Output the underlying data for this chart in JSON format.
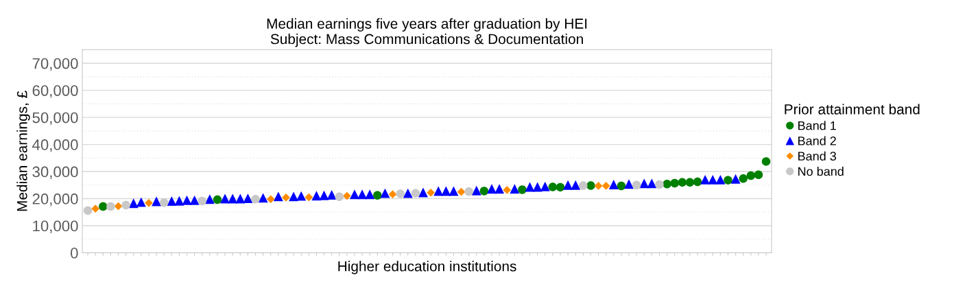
{
  "chart_data": {
    "type": "scatter",
    "title": "Median earnings five years after graduation by HEI\nSubject: Mass Communications & Documentation",
    "xlabel": "Higher education institutions",
    "ylabel": "Median earnings, £",
    "legend_title": "Prior attainment band",
    "legend": "right",
    "grid": "y",
    "categories": [
      null,
      null,
      null,
      null,
      null,
      null,
      null,
      null,
      null,
      null,
      null,
      null,
      null,
      null,
      null,
      null,
      null,
      null,
      null,
      null,
      null,
      null,
      null,
      null,
      null,
      null,
      null,
      null,
      null,
      null,
      null,
      null,
      null,
      null,
      null,
      null,
      null,
      null,
      null,
      null,
      null,
      null,
      null,
      null,
      null,
      null,
      null,
      null,
      null,
      null,
      null,
      null,
      null,
      null,
      null,
      null,
      null,
      null,
      null,
      null,
      null,
      null,
      null,
      null,
      null,
      null,
      null,
      null,
      null,
      null,
      null,
      null,
      null,
      null,
      null,
      null,
      null,
      null,
      null,
      null,
      null,
      null,
      null,
      null,
      null,
      null,
      null,
      null,
      null,
      null
    ],
    "ylim": [
      0,
      75000
    ],
    "yticks": [
      {
        "value": 0,
        "label": "0"
      },
      {
        "value": 5000,
        "label": null
      },
      {
        "value": 10000,
        "label": "10,000"
      },
      {
        "value": 15000,
        "label": null
      },
      {
        "value": 20000,
        "label": "20,000"
      },
      {
        "value": 25000,
        "label": null
      },
      {
        "value": 30000,
        "label": "30,000"
      },
      {
        "value": 35000,
        "label": null
      },
      {
        "value": 40000,
        "label": "40,000"
      },
      {
        "value": 45000,
        "label": null
      },
      {
        "value": 50000,
        "label": "50,000"
      },
      {
        "value": 55000,
        "label": null
      },
      {
        "value": 60000,
        "label": "60,000"
      },
      {
        "value": 65000,
        "label": null
      },
      {
        "value": 70000,
        "label": "70,000"
      }
    ],
    "series": [
      {
        "name": "Band 1",
        "color": "#008000",
        "marker": "circle",
        "values": [
          null,
          null,
          17100,
          null,
          null,
          null,
          null,
          null,
          null,
          null,
          null,
          null,
          null,
          null,
          null,
          null,
          null,
          19600,
          null,
          null,
          null,
          null,
          null,
          null,
          null,
          null,
          null,
          null,
          null,
          null,
          null,
          null,
          null,
          null,
          null,
          null,
          null,
          null,
          21200,
          null,
          null,
          null,
          null,
          null,
          null,
          null,
          null,
          null,
          null,
          null,
          null,
          null,
          22800,
          null,
          null,
          null,
          null,
          23300,
          null,
          null,
          null,
          24300,
          24200,
          null,
          null,
          null,
          24800,
          null,
          null,
          null,
          24700,
          null,
          null,
          null,
          null,
          null,
          25400,
          25700,
          26000,
          26000,
          26200,
          null,
          null,
          null,
          26800,
          null,
          27400,
          28500,
          28800,
          33700
        ]
      },
      {
        "name": "Band 2",
        "color": "#0000ff",
        "marker": "triangle",
        "values": [
          null,
          null,
          null,
          null,
          null,
          null,
          18300,
          18700,
          null,
          19000,
          null,
          19100,
          19200,
          19400,
          19400,
          null,
          19800,
          null,
          20000,
          20000,
          20000,
          20100,
          null,
          20300,
          null,
          20800,
          null,
          20800,
          21000,
          null,
          21100,
          21200,
          21400,
          null,
          null,
          21600,
          21600,
          21600,
          null,
          22000,
          null,
          null,
          22000,
          null,
          22300,
          null,
          22800,
          22800,
          22800,
          null,
          null,
          23000,
          null,
          23600,
          23600,
          null,
          23600,
          null,
          24300,
          24300,
          24500,
          null,
          null,
          25000,
          25000,
          null,
          null,
          null,
          null,
          25200,
          null,
          25400,
          null,
          25600,
          25600,
          null,
          null,
          null,
          null,
          null,
          null,
          27000,
          27000,
          27000,
          null,
          27300,
          null,
          null,
          null,
          null
        ]
      },
      {
        "name": "Band 3",
        "color": "#ff8c00",
        "marker": "diamond",
        "values": [
          null,
          16300,
          null,
          null,
          17200,
          null,
          null,
          null,
          18400,
          null,
          null,
          null,
          null,
          null,
          null,
          null,
          null,
          null,
          null,
          null,
          null,
          null,
          null,
          null,
          19800,
          null,
          20400,
          null,
          null,
          20500,
          null,
          null,
          null,
          null,
          21000,
          null,
          null,
          null,
          null,
          null,
          21600,
          null,
          null,
          null,
          null,
          22200,
          null,
          null,
          null,
          22500,
          null,
          null,
          null,
          null,
          null,
          23200,
          null,
          null,
          null,
          null,
          null,
          null,
          null,
          null,
          null,
          null,
          null,
          24700,
          24700,
          null,
          null,
          null,
          null,
          null,
          null,
          null,
          null,
          null,
          null,
          null,
          null,
          null,
          null,
          null,
          null,
          null,
          null,
          null,
          null,
          null
        ]
      },
      {
        "name": "No band",
        "color": "#c8c8c8",
        "marker": "circle",
        "values": [
          15600,
          null,
          null,
          17100,
          null,
          17600,
          null,
          null,
          null,
          null,
          18500,
          null,
          null,
          null,
          null,
          19100,
          null,
          null,
          null,
          null,
          null,
          null,
          19800,
          null,
          null,
          null,
          null,
          null,
          null,
          null,
          null,
          null,
          null,
          20700,
          null,
          null,
          null,
          null,
          null,
          null,
          null,
          21800,
          null,
          22000,
          null,
          null,
          null,
          null,
          null,
          null,
          22600,
          null,
          null,
          null,
          null,
          null,
          null,
          null,
          null,
          null,
          null,
          null,
          null,
          null,
          null,
          24800,
          null,
          null,
          null,
          null,
          null,
          null,
          25000,
          null,
          null,
          25200,
          null,
          null,
          null,
          null,
          null,
          null,
          null,
          null,
          null,
          null,
          null,
          null,
          null,
          null
        ]
      }
    ]
  }
}
